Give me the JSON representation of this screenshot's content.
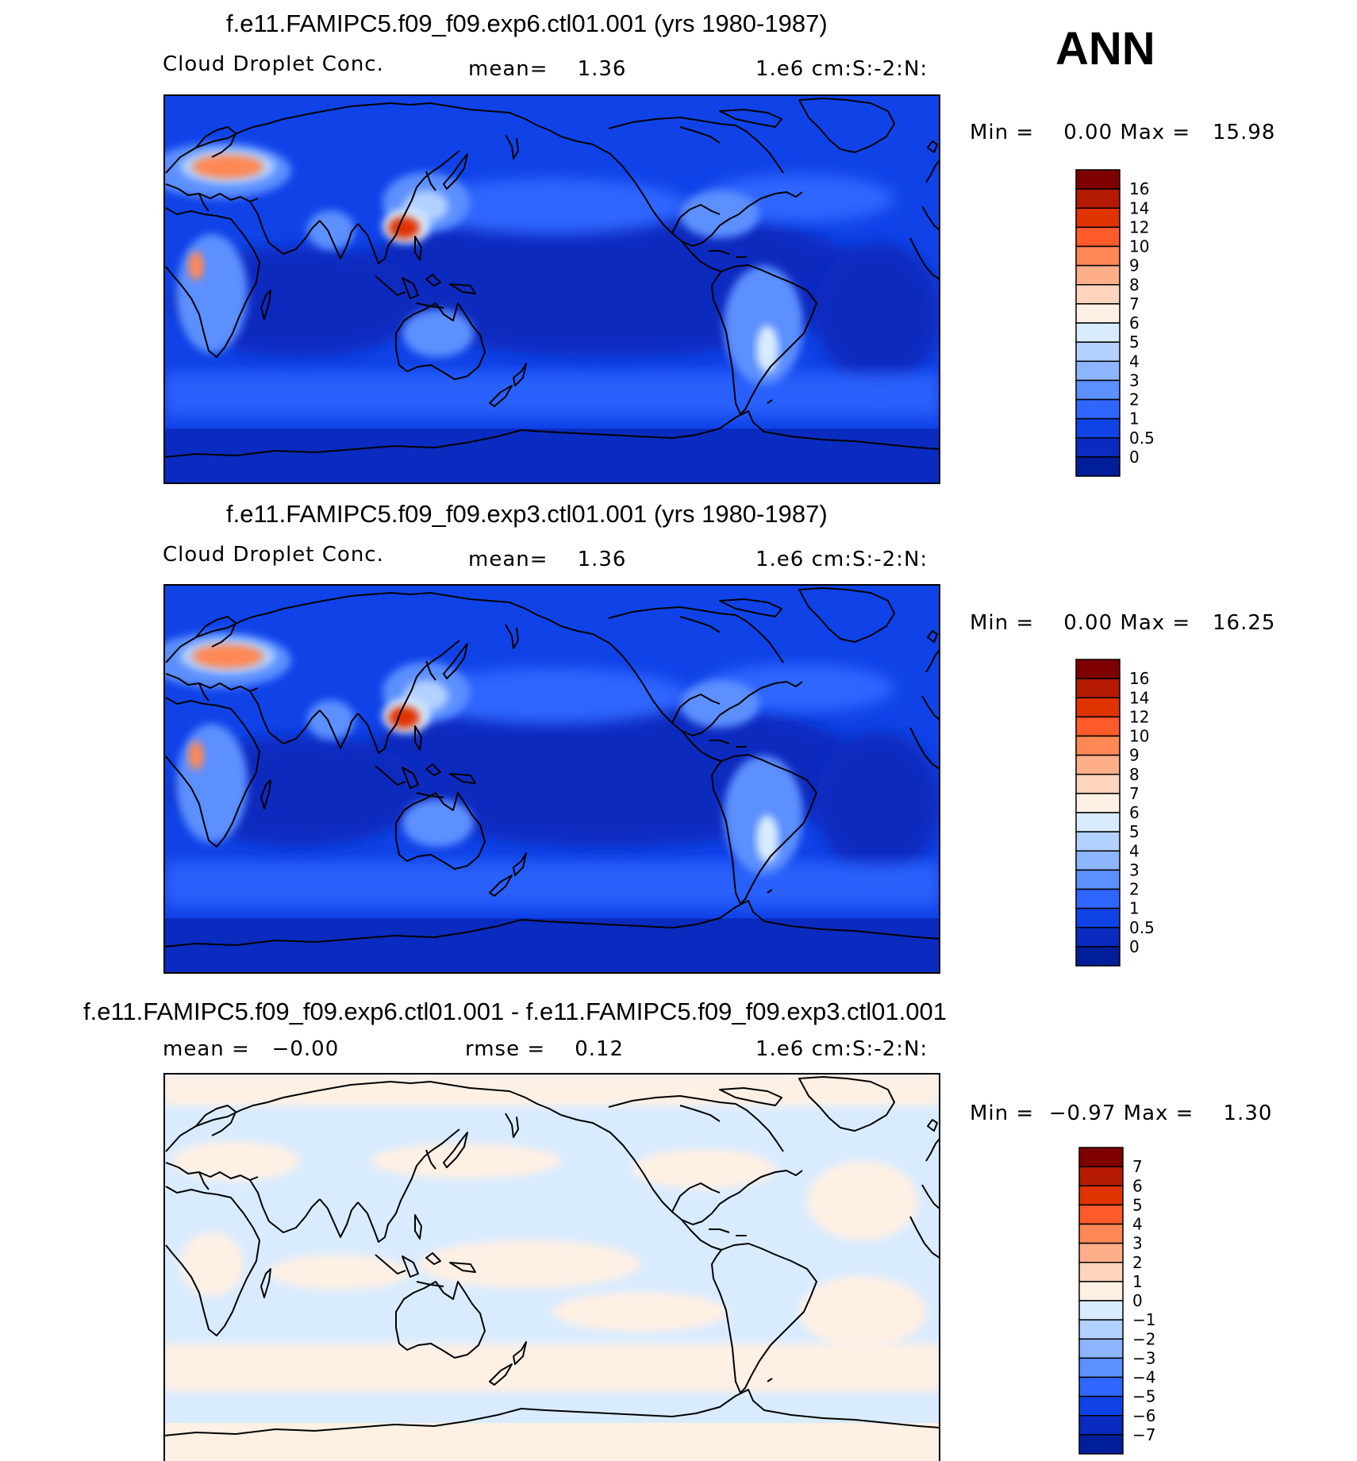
{
  "season": "ANN",
  "panels": [
    {
      "title": "f.e11.FAMIPC5.f09_f09.exp6.ctl01.001 (yrs 1980-1987)",
      "variable": "Cloud Droplet Conc.",
      "stat_text": "mean=    1.36",
      "units": "1.e6 cm:S:-2:N:",
      "minmax_text": "Min =    0.00 Max =   15.98",
      "colorbar": {
        "labels": [
          "16",
          "14",
          "12",
          "10",
          "9",
          "8",
          "7",
          "6",
          "5",
          "4",
          "3",
          "2",
          "1",
          "0.5",
          "0"
        ],
        "colors": [
          "#7f0000",
          "#b31a00",
          "#e03300",
          "#ff5a2a",
          "#ff8855",
          "#ffae8a",
          "#ffd4bd",
          "#fff0e4",
          "#d9ecff",
          "#b3d1ff",
          "#8cb4ff",
          "#5c8fff",
          "#2f66ff",
          "#0f43e8",
          "#0a2bbf",
          "#001e99"
        ]
      }
    },
    {
      "title": "f.e11.FAMIPC5.f09_f09.exp3.ctl01.001 (yrs 1980-1987)",
      "variable": "Cloud Droplet Conc.",
      "stat_text": "mean=    1.36",
      "units": "1.e6 cm:S:-2:N:",
      "minmax_text": "Min =    0.00 Max =   16.25",
      "colorbar": {
        "labels": [
          "16",
          "14",
          "12",
          "10",
          "9",
          "8",
          "7",
          "6",
          "5",
          "4",
          "3",
          "2",
          "1",
          "0.5",
          "0"
        ],
        "colors": [
          "#7f0000",
          "#b31a00",
          "#e03300",
          "#ff5a2a",
          "#ff8855",
          "#ffae8a",
          "#ffd4bd",
          "#fff0e4",
          "#d9ecff",
          "#b3d1ff",
          "#8cb4ff",
          "#5c8fff",
          "#2f66ff",
          "#0f43e8",
          "#0a2bbf",
          "#001e99"
        ]
      }
    },
    {
      "title": "f.e11.FAMIPC5.f09_f09.exp6.ctl01.001 - f.e11.FAMIPC5.f09_f09.exp3.ctl01.001",
      "variable": "mean =   −0.00",
      "stat_text": "rmse =    0.12",
      "units": "1.e6 cm:S:-2:N:",
      "minmax_text": "Min =  −0.97 Max =    1.30",
      "colorbar": {
        "labels": [
          "7",
          "6",
          "5",
          "4",
          "3",
          "2",
          "1",
          "0",
          "−1",
          "−2",
          "−3",
          "−4",
          "−5",
          "−6",
          "−7"
        ],
        "colors": [
          "#7f0000",
          "#b31a00",
          "#e03300",
          "#ff5a2a",
          "#ff8855",
          "#ffae8a",
          "#ffd4bd",
          "#fff0e4",
          "#d9ecff",
          "#b3d1ff",
          "#8cb4ff",
          "#5c8fff",
          "#2f66ff",
          "#0f43e8",
          "#0a2bbf",
          "#001e99"
        ]
      }
    }
  ],
  "chart_data": [
    {
      "type": "heatmap",
      "title": "f.e11.FAMIPC5.f09_f09.exp6.ctl01.001 (yrs 1980-1987)",
      "variable": "Cloud Droplet Conc.",
      "units": "1.e6 cm:S:-2:N:",
      "mean": 1.36,
      "min": 0.0,
      "max": 15.98,
      "contour_levels": [
        0,
        0.5,
        1,
        2,
        3,
        4,
        5,
        6,
        7,
        8,
        9,
        10,
        12,
        14,
        16
      ]
    },
    {
      "type": "heatmap",
      "title": "f.e11.FAMIPC5.f09_f09.exp3.ctl01.001 (yrs 1980-1987)",
      "variable": "Cloud Droplet Conc.",
      "units": "1.e6 cm:S:-2:N:",
      "mean": 1.36,
      "min": 0.0,
      "max": 16.25,
      "contour_levels": [
        0,
        0.5,
        1,
        2,
        3,
        4,
        5,
        6,
        7,
        8,
        9,
        10,
        12,
        14,
        16
      ]
    },
    {
      "type": "heatmap",
      "title": "f.e11.FAMIPC5.f09_f09.exp6.ctl01.001 - f.e11.FAMIPC5.f09_f09.exp3.ctl01.001",
      "units": "1.e6 cm:S:-2:N:",
      "mean": -0.0,
      "rmse": 0.12,
      "min": -0.97,
      "max": 1.3,
      "contour_levels": [
        -7,
        -6,
        -5,
        -4,
        -3,
        -2,
        -1,
        0,
        1,
        2,
        3,
        4,
        5,
        6,
        7
      ]
    }
  ]
}
